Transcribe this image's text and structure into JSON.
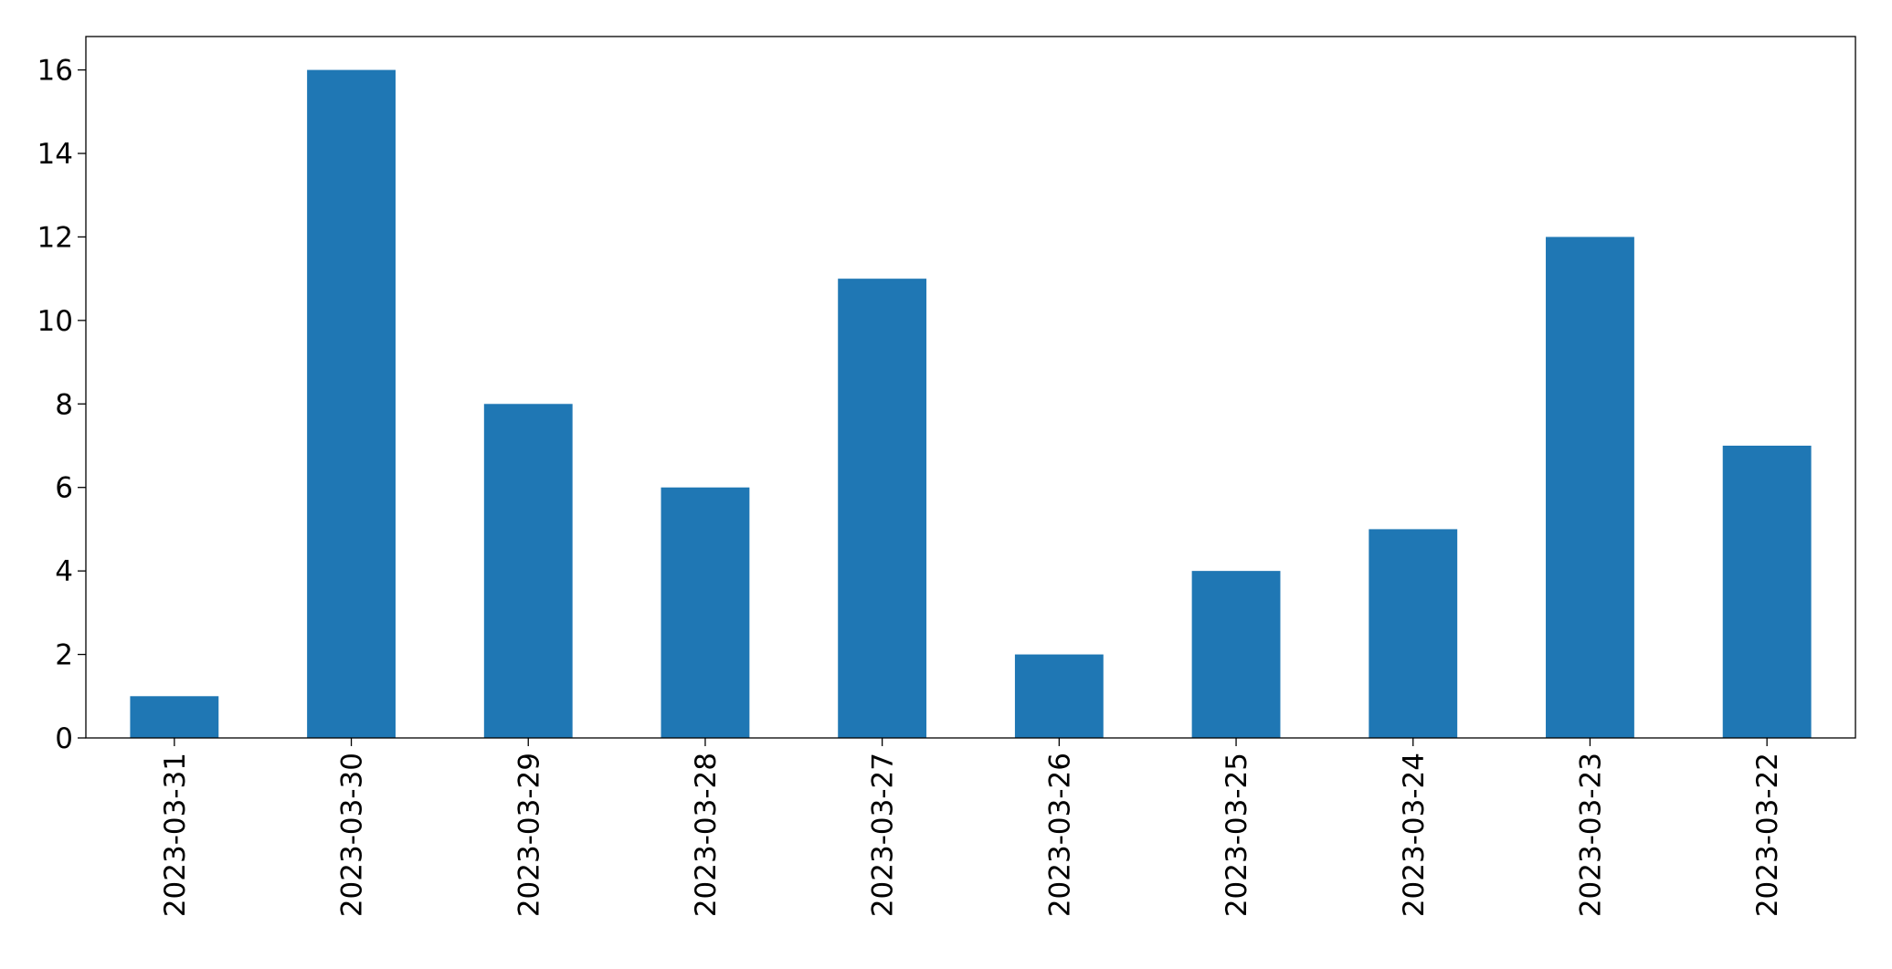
{
  "chart_data": {
    "type": "bar",
    "categories": [
      "2023-03-31",
      "2023-03-30",
      "2023-03-29",
      "2023-03-28",
      "2023-03-27",
      "2023-03-26",
      "2023-03-25",
      "2023-03-24",
      "2023-03-23",
      "2023-03-22"
    ],
    "values": [
      1,
      16,
      8,
      6,
      11,
      2,
      4,
      5,
      12,
      7
    ],
    "color": "#1f77b4",
    "ylim": [
      0,
      16.8
    ],
    "yticks": [
      0,
      2,
      4,
      6,
      8,
      10,
      12,
      14,
      16
    ],
    "grid": false
  }
}
